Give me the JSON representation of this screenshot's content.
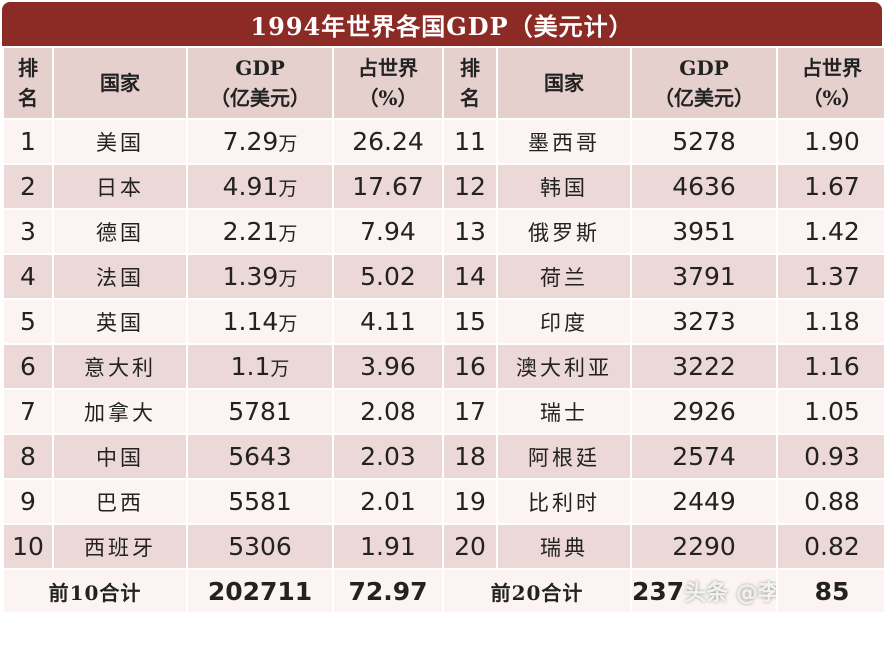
{
  "title": "1994年世界各国GDP（美元计）",
  "headers": {
    "rank": [
      "排",
      "名"
    ],
    "country": "国家",
    "gdp": [
      "GDP",
      "（亿美元）"
    ],
    "share": [
      "占世界",
      "（%）"
    ]
  },
  "rows_left": [
    {
      "rank": "1",
      "country": "美国",
      "gdp": "7.29",
      "unit": "万",
      "share": "26.24"
    },
    {
      "rank": "2",
      "country": "日本",
      "gdp": "4.91",
      "unit": "万",
      "share": "17.67"
    },
    {
      "rank": "3",
      "country": "德国",
      "gdp": "2.21",
      "unit": "万",
      "share": "7.94"
    },
    {
      "rank": "4",
      "country": "法国",
      "gdp": "1.39",
      "unit": "万",
      "share": "5.02"
    },
    {
      "rank": "5",
      "country": "英国",
      "gdp": "1.14",
      "unit": "万",
      "share": "4.11"
    },
    {
      "rank": "6",
      "country": "意大利",
      "gdp": "1.1",
      "unit": "万",
      "share": "3.96"
    },
    {
      "rank": "7",
      "country": "加拿大",
      "gdp": "5781",
      "unit": "",
      "share": "2.08"
    },
    {
      "rank": "8",
      "country": "中国",
      "gdp": "5643",
      "unit": "",
      "share": "2.03"
    },
    {
      "rank": "9",
      "country": "巴西",
      "gdp": "5581",
      "unit": "",
      "share": "2.01"
    },
    {
      "rank": "10",
      "country": "西班牙",
      "gdp": "5306",
      "unit": "",
      "share": "1.91"
    }
  ],
  "rows_right": [
    {
      "rank": "11",
      "country": "墨西哥",
      "gdp": "5278",
      "share": "1.90"
    },
    {
      "rank": "12",
      "country": "韩国",
      "gdp": "4636",
      "share": "1.67"
    },
    {
      "rank": "13",
      "country": "俄罗斯",
      "gdp": "3951",
      "share": "1.42"
    },
    {
      "rank": "14",
      "country": "荷兰",
      "gdp": "3791",
      "share": "1.37"
    },
    {
      "rank": "15",
      "country": "印度",
      "gdp": "3273",
      "share": "1.18"
    },
    {
      "rank": "16",
      "country": "澳大利亚",
      "gdp": "3222",
      "share": "1.16"
    },
    {
      "rank": "17",
      "country": "瑞士",
      "gdp": "2926",
      "share": "1.05"
    },
    {
      "rank": "18",
      "country": "阿根廷",
      "gdp": "2574",
      "share": "0.93"
    },
    {
      "rank": "19",
      "country": "比利时",
      "gdp": "2449",
      "share": "0.88"
    },
    {
      "rank": "20",
      "country": "瑞典",
      "gdp": "2290",
      "share": "0.82"
    }
  ],
  "totals": {
    "left_label": "前10合计",
    "left_gdp": "202711",
    "left_share": "72.97",
    "right_label": "前20合计",
    "right_gdp": "237",
    "right_share": "85"
  },
  "watermark": "头条 @李"
}
